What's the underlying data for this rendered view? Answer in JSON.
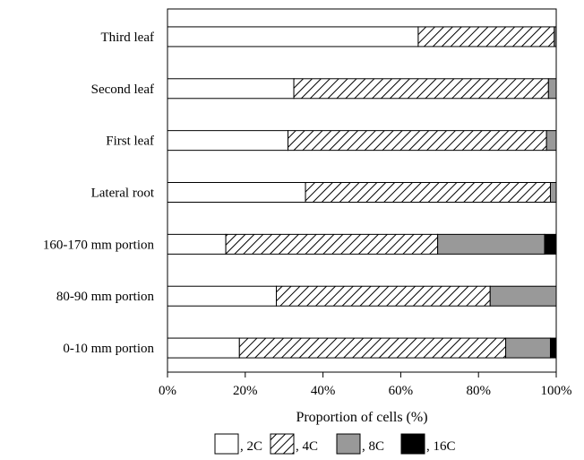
{
  "chart_data": {
    "type": "bar",
    "orientation": "horizontal",
    "stacked": true,
    "percent_stacked": true,
    "categories": [
      "Third leaf",
      "Second leaf",
      "First leaf",
      "Lateral root",
      "160-170 mm portion",
      "80-90 mm portion",
      "0-10 mm portion"
    ],
    "series": [
      {
        "name": ", 2C",
        "values": [
          64.5,
          32.5,
          31.0,
          35.5,
          15.0,
          28.0,
          18.5
        ],
        "fill": "white"
      },
      {
        "name": ", 4C",
        "values": [
          35.0,
          65.5,
          66.5,
          63.0,
          54.5,
          55.0,
          68.5
        ],
        "fill": "hatch"
      },
      {
        "name": ", 8C",
        "values": [
          0.5,
          2.0,
          2.5,
          1.5,
          27.5,
          17.0,
          11.5
        ],
        "fill": "#999999"
      },
      {
        "name": ", 16C",
        "values": [
          0.0,
          0.0,
          0.0,
          0.0,
          3.0,
          0.0,
          1.5
        ],
        "fill": "#000000"
      }
    ],
    "x_ticks": [
      "0%",
      "20%",
      "40%",
      "60%",
      "80%",
      "100%"
    ],
    "xlabel": "Proportion of cells (%)",
    "ylabel": "",
    "title": "",
    "xlim": [
      0,
      100
    ],
    "grid": false,
    "legend_position": "bottom"
  }
}
